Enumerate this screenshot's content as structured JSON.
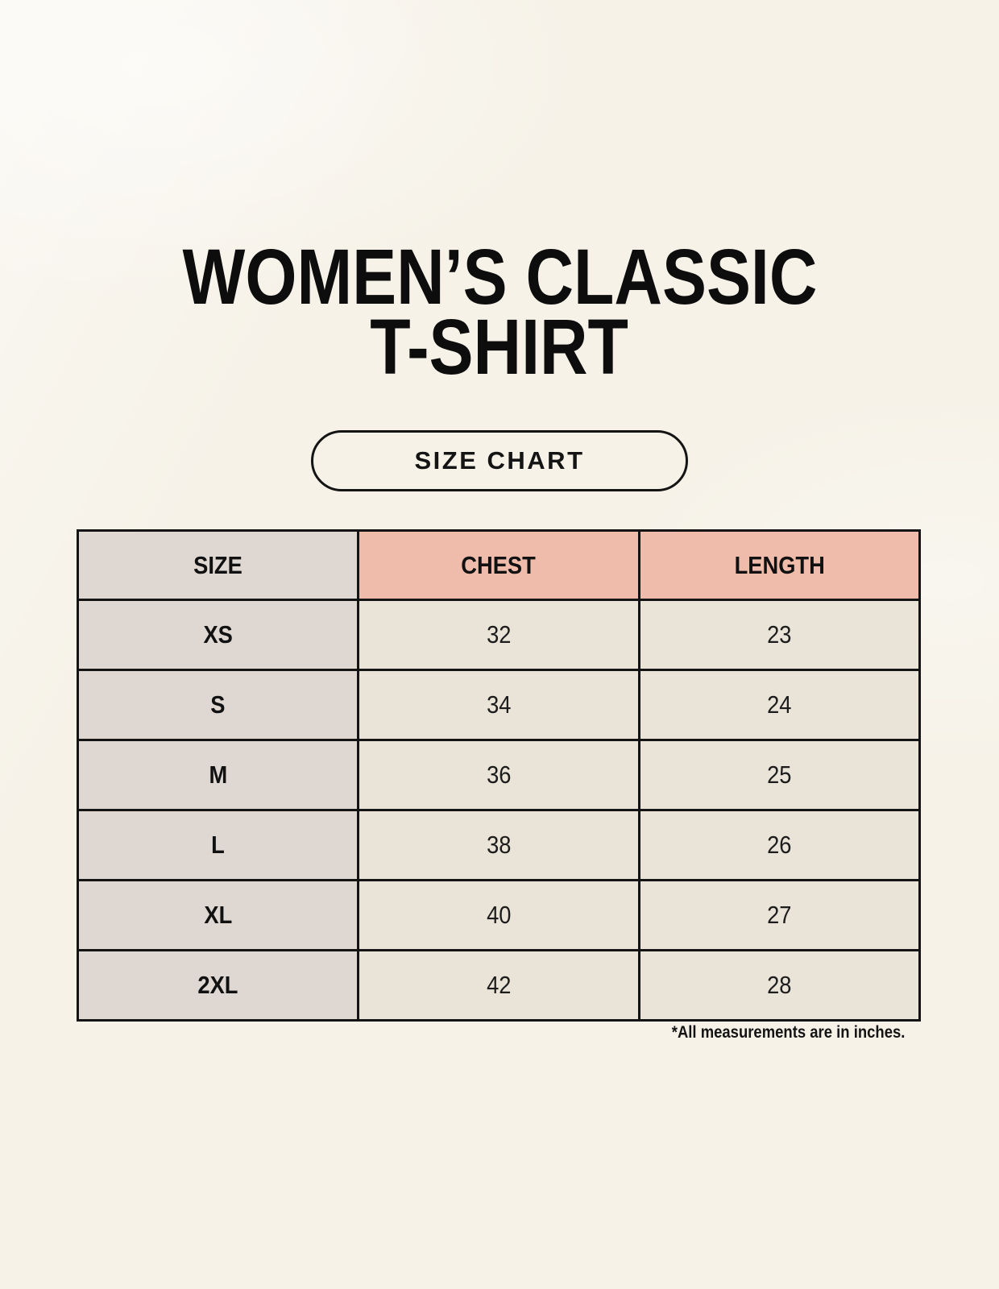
{
  "title": {
    "line1": "WOMEN’S CLASSIC",
    "line2": "T-SHIRT"
  },
  "size_chart_button": {
    "label": "SIZE CHART"
  },
  "table": {
    "headers": [
      "SIZE",
      "CHEST",
      "LENGTH"
    ],
    "rows": [
      {
        "size": "XS",
        "chest": "32",
        "length": "23"
      },
      {
        "size": "S",
        "chest": "34",
        "length": "24"
      },
      {
        "size": "M",
        "chest": "36",
        "length": "25"
      },
      {
        "size": "L",
        "chest": "38",
        "length": "26"
      },
      {
        "size": "XL",
        "chest": "40",
        "length": "27"
      },
      {
        "size": "2XL",
        "chest": "42",
        "length": "28"
      }
    ]
  },
  "footnote": "*All measurements are in inches.",
  "colors": {
    "background": "#f6f2e8",
    "size_column": "#ded7d2",
    "header_accent": "#efbcab",
    "data_cell": "#eae3d7",
    "border": "#141414",
    "text": "#111111"
  },
  "chart_data": {
    "type": "table",
    "title": "WOMEN’S CLASSIC T-SHIRT — SIZE CHART",
    "columns": [
      "SIZE",
      "CHEST",
      "LENGTH"
    ],
    "rows": [
      [
        "XS",
        32,
        23
      ],
      [
        "S",
        34,
        24
      ],
      [
        "M",
        36,
        25
      ],
      [
        "L",
        38,
        26
      ],
      [
        "XL",
        40,
        27
      ],
      [
        "2XL",
        42,
        28
      ]
    ],
    "note": "*All measurements are in inches."
  }
}
